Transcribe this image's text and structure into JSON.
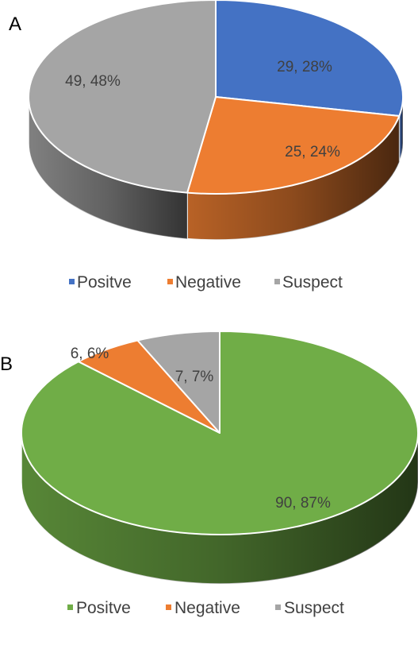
{
  "chart_data": [
    {
      "type": "pie",
      "style": "3d",
      "panel_label": "A",
      "categories": [
        "Positve",
        "Negative",
        "Suspect"
      ],
      "values": [
        29,
        25,
        49
      ],
      "percents": [
        28,
        24,
        48
      ],
      "data_labels": [
        "29, 28%",
        "25, 24%",
        "49, 48%"
      ],
      "colors": [
        "#4472C4",
        "#ED7D31",
        "#A5A5A5"
      ],
      "legend": {
        "placement": "bottom",
        "entries": [
          "Positve",
          "Negative",
          "Suspect"
        ]
      }
    },
    {
      "type": "pie",
      "style": "3d",
      "panel_label": "B",
      "categories": [
        "Positve",
        "Negative",
        "Suspect"
      ],
      "values": [
        90,
        6,
        7
      ],
      "percents": [
        87,
        6,
        7
      ],
      "data_labels": [
        "90, 87%",
        "6, 6%",
        "7, 7%"
      ],
      "colors": [
        "#70AD47",
        "#ED7D31",
        "#A5A5A5"
      ],
      "legend": {
        "placement": "bottom",
        "entries": [
          "Positve",
          "Negative",
          "Suspect"
        ]
      }
    }
  ]
}
